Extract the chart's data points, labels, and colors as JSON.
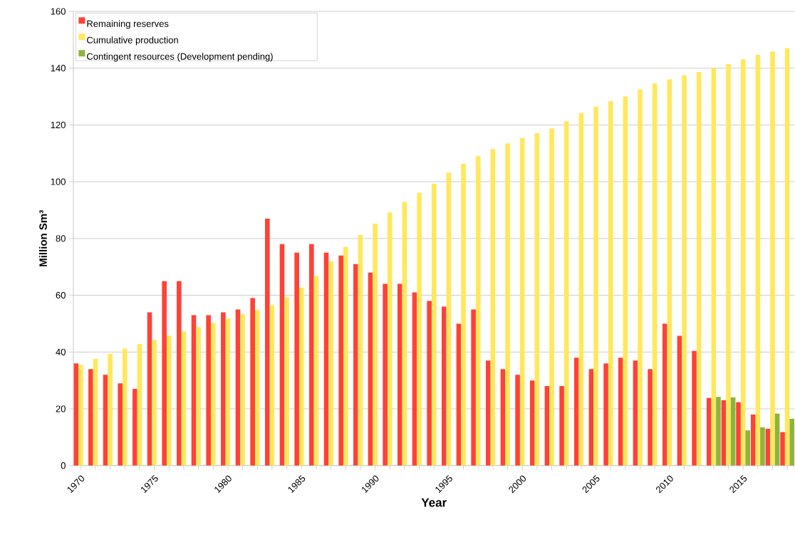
{
  "chart_data": {
    "type": "bar",
    "xlabel": "Year",
    "ylabel": "Million Sm³",
    "categories": [
      "1970",
      null,
      null,
      null,
      null,
      "1975",
      null,
      null,
      null,
      null,
      "1980",
      null,
      null,
      null,
      null,
      "1985",
      null,
      null,
      null,
      null,
      "1990",
      null,
      null,
      null,
      null,
      "1995",
      null,
      null,
      null,
      null,
      "2000",
      null,
      null,
      null,
      null,
      "2005",
      null,
      null,
      null,
      null,
      "2010",
      null,
      null,
      null,
      null,
      "2015",
      null,
      null,
      null
    ],
    "series": [
      {
        "name": "Remaining reserves",
        "color": "#ff4136",
        "values": [
          36,
          34,
          32,
          29,
          27,
          54,
          65,
          65,
          53,
          53,
          54,
          55,
          59,
          87,
          78,
          75,
          78,
          75,
          74,
          71,
          68,
          64,
          64,
          61,
          58,
          56,
          50,
          55,
          37,
          34,
          32,
          30,
          28,
          28,
          38,
          34,
          36,
          38,
          37,
          34,
          50,
          45.7,
          40.4,
          23.8,
          23,
          22.3,
          18,
          13,
          11.8
        ]
      },
      {
        "name": "Cumulative production",
        "color": "#ffe85c",
        "values": [
          35.5,
          37.6,
          39.4,
          41.2,
          42.8,
          44.3,
          45.8,
          47.3,
          48.8,
          50.3,
          51.8,
          53.3,
          54.8,
          56.5,
          59.3,
          62.7,
          66.8,
          72,
          77,
          81.3,
          85.2,
          89.2,
          92.9,
          96.1,
          99.3,
          103.2,
          106.3,
          109,
          111.5,
          113.5,
          115.4,
          117.1,
          118.7,
          121.3,
          124.2,
          126.5,
          128.4,
          130,
          132.5,
          134.6,
          136.1,
          137.5,
          138.7,
          140,
          141.4,
          143.1,
          144.7,
          145.9,
          147
        ]
      },
      {
        "name": "Contingent resources (Development pending)",
        "color": "#8db43e",
        "values": [
          null,
          null,
          null,
          null,
          null,
          null,
          null,
          null,
          null,
          null,
          null,
          null,
          null,
          null,
          null,
          null,
          null,
          null,
          null,
          null,
          null,
          null,
          null,
          null,
          null,
          null,
          null,
          null,
          null,
          null,
          null,
          null,
          null,
          null,
          null,
          null,
          null,
          null,
          null,
          null,
          null,
          null,
          null,
          24.2,
          24,
          12.4,
          13.5,
          18.3,
          16.5
        ]
      }
    ],
    "ylim": [
      0,
      160
    ],
    "yticks": [
      0,
      20,
      40,
      60,
      80,
      100,
      120,
      140,
      160
    ],
    "grid": "y",
    "legend": "top left"
  }
}
